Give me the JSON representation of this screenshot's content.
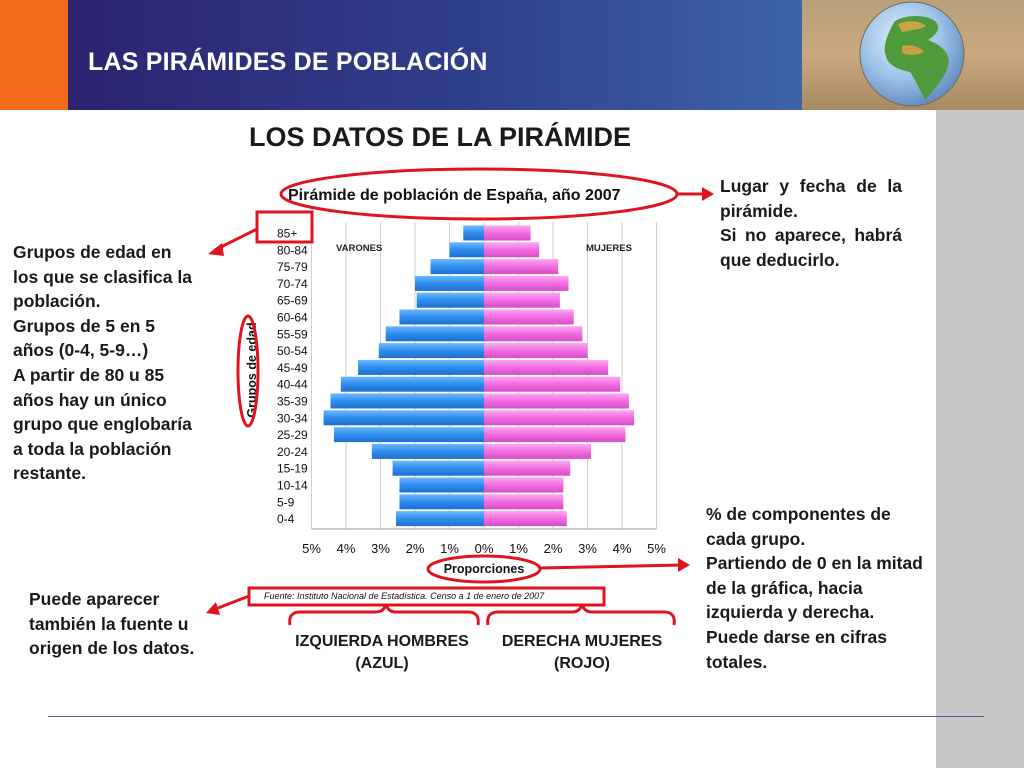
{
  "header": {
    "title": "LAS PIRÁMIDES DE POBLACIÓN",
    "subtitle": "LOS DATOS DE LA PIRÁMIDE"
  },
  "notes": {
    "left": [
      "Grupos de edad en los que se clasifica la población.",
      "Grupos de 5 en 5 años (0-4, 5-9…)",
      "A partir de 80 u 85 años hay un único grupo que englobaría a toda la población restante."
    ],
    "right_top": [
      "Lugar y fecha de la pirámide.",
      "Si no aparece, habrá que deducirlo."
    ],
    "right_bottom": [
      "% de componentes de cada grupo.",
      "Partiendo de 0 en la mitad de la gráfica, hacia izquierda y derecha.",
      "Puede darse en cifras totales."
    ],
    "bottom_left": [
      "Puede aparecer también la fuente u origen de los datos."
    ]
  },
  "directions": {
    "men": [
      "IZQUIERDA HOMBRES",
      "(AZUL)"
    ],
    "women": [
      "DERECHA MUJERES",
      "(ROJO)"
    ]
  },
  "colors": {
    "male": "#2f8ef0",
    "female": "#f06ee0",
    "annotation": "#e0141e"
  },
  "chart_data": {
    "type": "bar",
    "orientation": "horizontal-population-pyramid",
    "title": "Pirámide de población de España, año 2007",
    "xlabel": "Proporciones",
    "ylabel": "Grupos de edad",
    "source": "Fuente: Instituto Nacional de Estadística. Censo a 1 de enero de 2007",
    "categories": [
      "0-4",
      "5-9",
      "10-14",
      "15-19",
      "20-24",
      "25-29",
      "30-34",
      "35-39",
      "40-44",
      "45-49",
      "50-54",
      "55-59",
      "60-64",
      "65-69",
      "70-74",
      "75-79",
      "80-84",
      "85+"
    ],
    "series": [
      {
        "name": "VARONES",
        "values": [
          2.55,
          2.45,
          2.45,
          2.65,
          3.25,
          4.35,
          4.65,
          4.45,
          4.15,
          3.65,
          3.05,
          2.85,
          2.45,
          1.95,
          2.0,
          1.55,
          1.0,
          0.6
        ]
      },
      {
        "name": "MUJERES",
        "values": [
          2.4,
          2.3,
          2.3,
          2.5,
          3.1,
          4.1,
          4.35,
          4.2,
          3.95,
          3.6,
          3.0,
          2.85,
          2.6,
          2.2,
          2.45,
          2.15,
          1.6,
          1.35
        ]
      }
    ],
    "xticks": [
      "5%",
      "4%",
      "3%",
      "2%",
      "1%",
      "0%",
      "1%",
      "2%",
      "3%",
      "4%",
      "5%"
    ],
    "xlim": [
      -5,
      5
    ],
    "grid": true
  }
}
